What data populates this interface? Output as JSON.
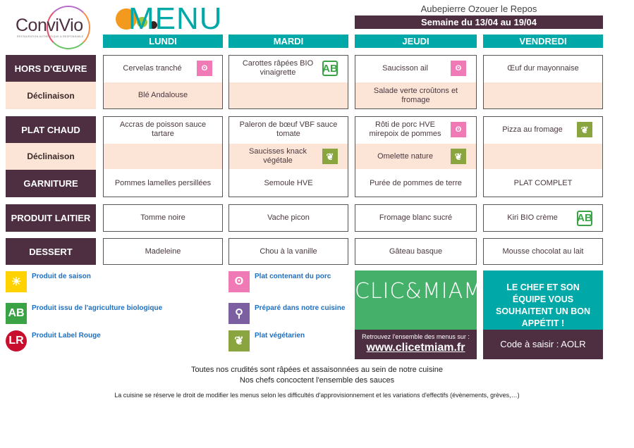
{
  "brand": {
    "name": "ConviVio",
    "tagline": "RESTAURATION AUTHENTIQUE & RESPONSABLE"
  },
  "title": "MENU",
  "school": "Aubepierre Ozouer le Repos",
  "week": "Semaine du 13/04 au 19/04",
  "days": [
    "LUNDI",
    "MARDI",
    "JEUDI",
    "VENDREDI"
  ],
  "rows": [
    {
      "label": "HORS D'ŒUVRE",
      "style": "dark",
      "cells": [
        {
          "text": "Cervelas tranché",
          "icon": "pig"
        },
        {
          "text": "Carottes râpées BIO vinaigrette",
          "icon": "ab"
        },
        {
          "text": "Saucisson ail",
          "icon": "pig"
        },
        {
          "text": "Œuf dur mayonnaise",
          "icon": ""
        }
      ]
    },
    {
      "label": "Déclinaison",
      "style": "light",
      "cells": [
        {
          "text": "Blé Andalouse",
          "icon": ""
        },
        {
          "text": "",
          "icon": ""
        },
        {
          "text": "Salade verte croûtons et fromage",
          "icon": ""
        },
        {
          "text": "",
          "icon": ""
        }
      ]
    },
    {
      "label": "PLAT CHAUD",
      "style": "dark",
      "cells": [
        {
          "text": "Accras de poisson sauce tartare",
          "icon": ""
        },
        {
          "text": "Paleron de bœuf VBF sauce tomate",
          "icon": ""
        },
        {
          "text": "Rôti de porc HVE mirepoix de pommes",
          "icon": "pig"
        },
        {
          "text": "Pizza au fromage",
          "icon": "leaf"
        }
      ]
    },
    {
      "label": "Déclinaison",
      "style": "light",
      "cells": [
        {
          "text": "",
          "icon": ""
        },
        {
          "text": "Saucisses knack végétale",
          "icon": "leaf"
        },
        {
          "text": "Omelette nature",
          "icon": "leaf"
        },
        {
          "text": "",
          "icon": ""
        }
      ]
    },
    {
      "label": "GARNITURE",
      "style": "dark",
      "cells": [
        {
          "text": "Pommes lamelles persillées",
          "icon": ""
        },
        {
          "text": "Semoule HVE",
          "icon": ""
        },
        {
          "text": "Purée de pommes de terre",
          "icon": ""
        },
        {
          "text": "PLAT COMPLET",
          "icon": ""
        }
      ]
    },
    {
      "label": "PRODUIT LAITIER",
      "style": "dark",
      "cells": [
        {
          "text": "Tomme noire",
          "icon": ""
        },
        {
          "text": "Vache picon",
          "icon": ""
        },
        {
          "text": "Fromage blanc sucré",
          "icon": ""
        },
        {
          "text": "Kiri BIO crème",
          "icon": "ab"
        }
      ]
    },
    {
      "label": "DESSERT",
      "style": "dark",
      "cells": [
        {
          "text": "Madeleine",
          "icon": ""
        },
        {
          "text": "Chou à la vanille",
          "icon": ""
        },
        {
          "text": "Gâteau basque",
          "icon": ""
        },
        {
          "text": "Mousse chocolat au lait",
          "icon": ""
        }
      ]
    }
  ],
  "legend": [
    {
      "icon": "sun",
      "text": "Produit de saison"
    },
    {
      "icon": "ab",
      "text": "Produit issu de l'agriculture biologique"
    },
    {
      "icon": "label-rouge",
      "text": "Produit Label Rouge"
    },
    {
      "icon": "pig",
      "text": "Plat contenant du porc"
    },
    {
      "icon": "whisk",
      "text": "Préparé dans notre cuisine"
    },
    {
      "icon": "leaf",
      "text": "Plat végétarien"
    }
  ],
  "clicmiam": {
    "logo": "CLIC&MIAM!",
    "text": "Retrouvez l'ensemble des menus sur :",
    "url": "www.clicetmiam.fr"
  },
  "chef": {
    "message": "LE CHEF ET SON ÉQUIPE VOUS SOUHAITENT UN BON APPÉTIT !",
    "code": "Code à saisir : AOLR"
  },
  "footer": [
    "Toutes nos crudités sont râpées et assaisonnées au sein de notre cuisine",
    "Nos chefs concoctent l'ensemble des sauces",
    "La cuisine se réserve le droit de modifier les menus selon les difficultés d'approvisionnement et les variations d'effectifs (évènements, grèves,…)"
  ],
  "colors": {
    "teal": "#00a8a8",
    "plum": "#4e2f42",
    "peach": "#fce4d6",
    "green": "#45b06a"
  }
}
